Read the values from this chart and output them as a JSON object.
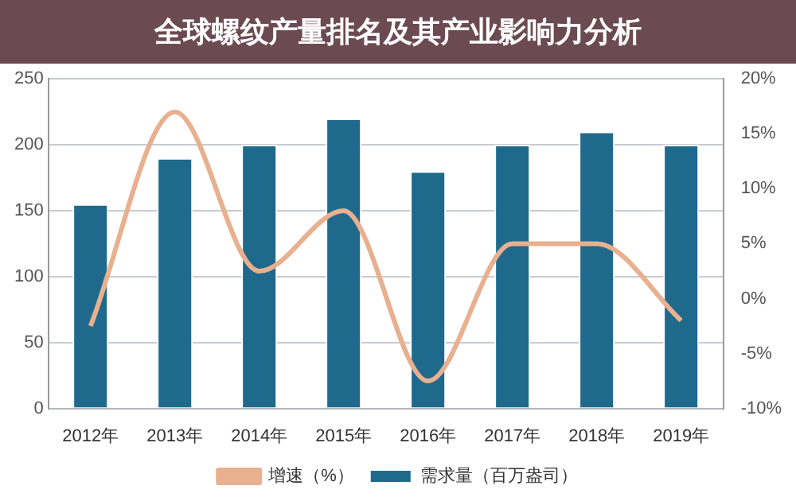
{
  "chart_data": {
    "type": "bar",
    "title": "全球螺纹产量排名及其产业影响力分析",
    "categories": [
      "2012年",
      "2013年",
      "2014年",
      "2015年",
      "2016年",
      "2017年",
      "2018年",
      "2019年"
    ],
    "series": [
      {
        "name": "需求量（百万盎司）",
        "color": "#1f6a8c",
        "values": [
          155,
          190,
          200,
          220,
          180,
          200,
          210,
          200
        ]
      },
      {
        "name": "增速（%）",
        "type": "line",
        "axis": "y2",
        "color": "#e8b08f",
        "values": [
          -2.5,
          17,
          2.5,
          8,
          -7.5,
          5,
          5,
          -2
        ]
      }
    ],
    "ylim": [
      0,
      250
    ],
    "yticks": [
      0,
      50,
      100,
      150,
      200,
      250
    ],
    "y2lim": [
      -10,
      20
    ],
    "y2ticks": [
      {
        "value": -10,
        "label": "-10%"
      },
      {
        "value": -5,
        "label": "-5%"
      },
      {
        "value": 0,
        "label": "0%"
      },
      {
        "value": 5,
        "label": "5%"
      },
      {
        "value": 10,
        "label": "10%"
      },
      {
        "value": 15,
        "label": "15%"
      },
      {
        "value": 20,
        "label": "20%"
      }
    ],
    "grid": "y",
    "legend": "bottom",
    "marker": "none",
    "line_style": "solid"
  }
}
